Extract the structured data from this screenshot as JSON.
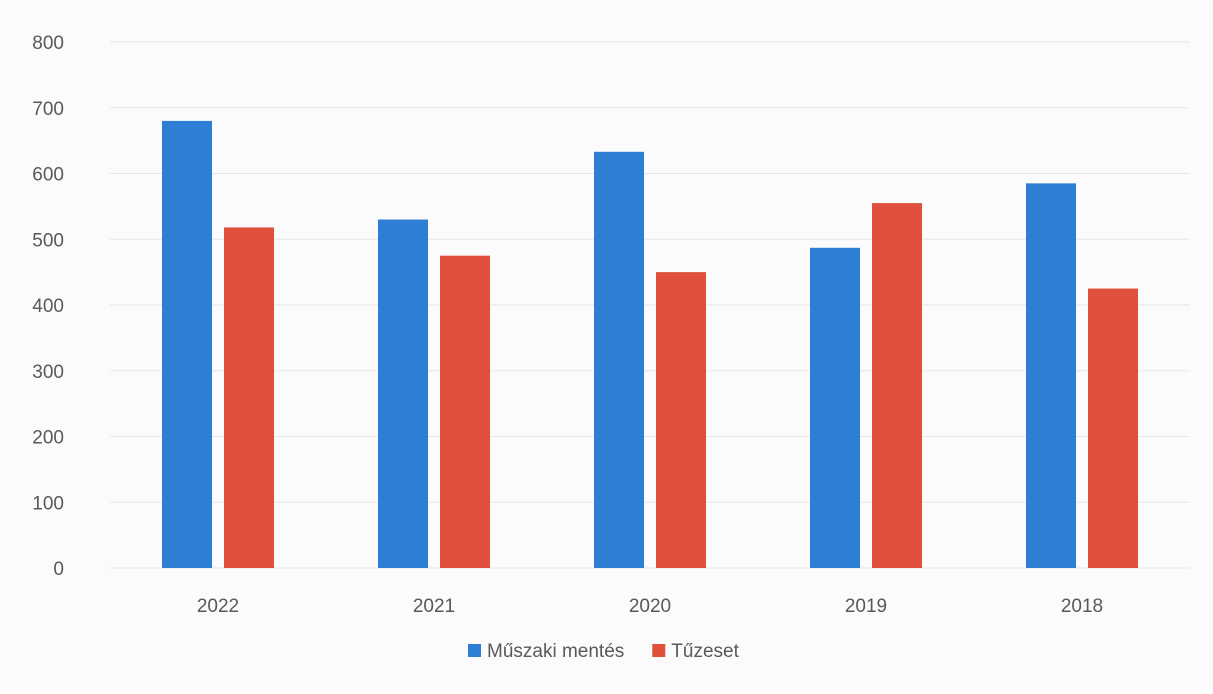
{
  "chart_data": {
    "type": "bar",
    "title": "",
    "xlabel": "",
    "ylabel": "",
    "categories": [
      "2022",
      "2021",
      "2020",
      "2019",
      "2018"
    ],
    "series": [
      {
        "name": "Műszaki mentés",
        "color": "#2e7ed6",
        "values": [
          680,
          530,
          633,
          487,
          585
        ]
      },
      {
        "name": "Tűzeset",
        "color": "#e0503c",
        "values": [
          518,
          475,
          450,
          555,
          425
        ]
      }
    ],
    "ylim": [
      0,
      800
    ],
    "yticks": [
      0,
      100,
      200,
      300,
      400,
      500,
      600,
      700,
      800
    ],
    "grid": true,
    "legend_position": "bottom"
  }
}
